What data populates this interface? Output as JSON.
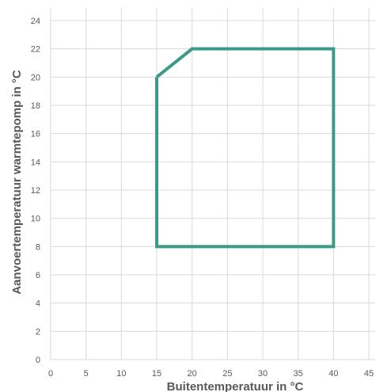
{
  "chart_data": {
    "type": "line",
    "title": "",
    "xlabel": "Buitentemperatuur in °C",
    "ylabel": "Aanvoertemperatuur warmtepomp in °C",
    "xlim": [
      0,
      45
    ],
    "ylim": [
      0,
      24
    ],
    "x_ticks": [
      0,
      5,
      10,
      15,
      20,
      25,
      30,
      35,
      40,
      45
    ],
    "y_ticks": [
      0,
      2,
      4,
      6,
      8,
      10,
      12,
      14,
      16,
      18,
      20,
      22,
      24
    ],
    "grid": true,
    "legend": "none",
    "series": [
      {
        "color": "#3a9a86",
        "closed": true,
        "points": [
          {
            "x": 15,
            "y": 20
          },
          {
            "x": 20,
            "y": 22
          },
          {
            "x": 40,
            "y": 22
          },
          {
            "x": 40,
            "y": 8
          },
          {
            "x": 15,
            "y": 8
          },
          {
            "x": 15,
            "y": 20
          }
        ]
      }
    ]
  }
}
